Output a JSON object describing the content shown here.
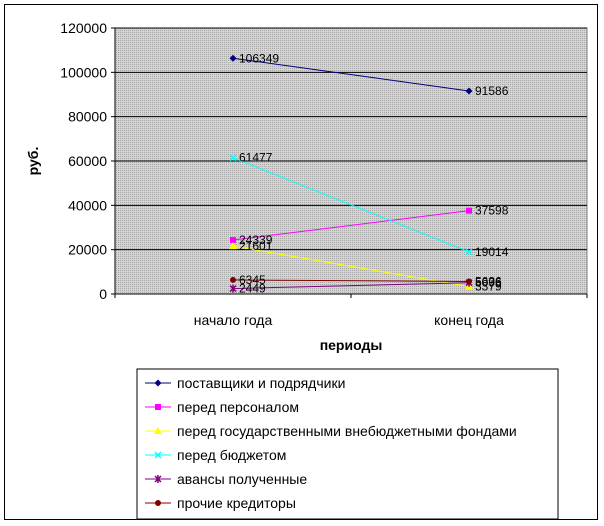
{
  "chart_data": {
    "type": "line",
    "title": "",
    "xlabel": "периоды",
    "ylabel": "руб.",
    "categories": [
      "начало года",
      "конец года"
    ],
    "ylim": [
      0,
      120000
    ],
    "yticks": [
      0,
      20000,
      40000,
      60000,
      80000,
      100000,
      120000
    ],
    "grid": true,
    "legend_position": "bottom",
    "series": [
      {
        "name": " поставщики и подрядчики",
        "values": [
          106349,
          91586
        ],
        "labels": [
          "106349",
          "91586"
        ],
        "color": "#000080",
        "marker": "diamond"
      },
      {
        "name": "перед персоналом",
        "values": [
          24339,
          37598
        ],
        "labels": [
          "24339",
          "37598"
        ],
        "color": "#FF00FF",
        "marker": "square"
      },
      {
        "name": "перед государственными внебюджетными фондами",
        "values": [
          21601,
          3379
        ],
        "labels": [
          "21601",
          "3379"
        ],
        "color": "#FFFF00",
        "marker": "triangle"
      },
      {
        "name": "перед бюджетом",
        "values": [
          61477,
          19014
        ],
        "labels": [
          "61477",
          "19014"
        ],
        "color": "#00FFFF",
        "marker": "x"
      },
      {
        "name": "авансы полученные",
        "values": [
          2449,
          5096
        ],
        "labels": [
          "2449",
          "5096"
        ],
        "color": "#800080",
        "marker": "star"
      },
      {
        "name": "прочие кредиторы",
        "values": [
          6345,
          5636
        ],
        "labels": [
          "6345",
          "5636"
        ],
        "color": "#800000",
        "marker": "circle"
      }
    ]
  }
}
